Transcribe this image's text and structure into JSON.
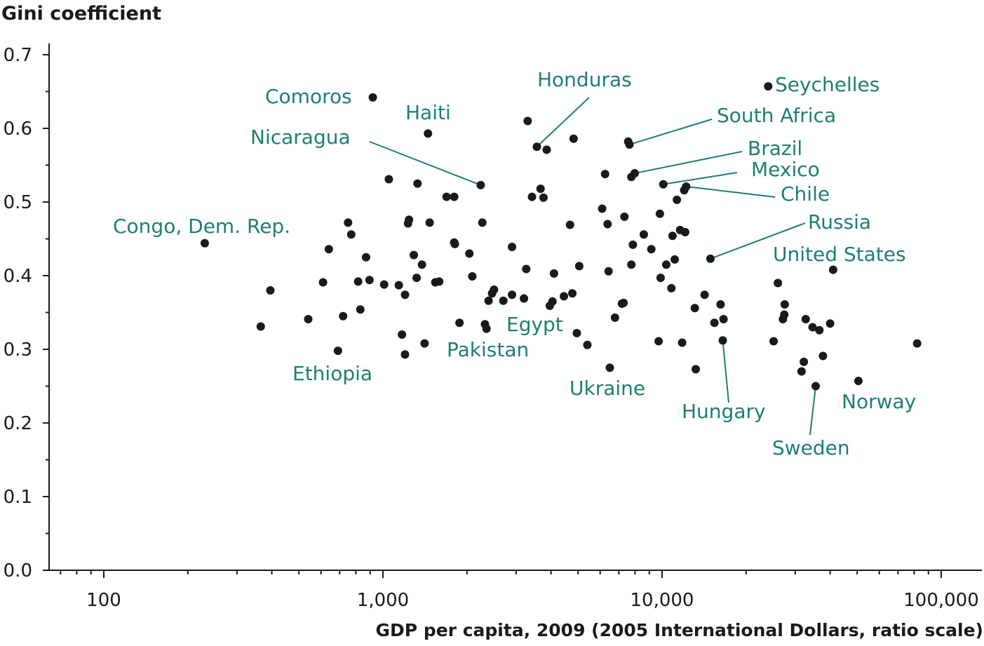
{
  "chart_data": {
    "type": "scatter",
    "ylabel": "Gini coefficient",
    "xlabel": "GDP per capita, 2009 (2005 International Dollars, ratio scale)",
    "x_scale": "log",
    "xlim": [
      63,
      100000
    ],
    "ylim": [
      0,
      0.7
    ],
    "x_ticks": [
      {
        "value": 100,
        "label": "100"
      },
      {
        "value": 1000,
        "label": "1,000"
      },
      {
        "value": 10000,
        "label": "10,000"
      },
      {
        "value": 100000,
        "label": "100,000"
      }
    ],
    "y_ticks": [
      {
        "value": 0.0,
        "label": "0.0"
      },
      {
        "value": 0.1,
        "label": "0.1"
      },
      {
        "value": 0.2,
        "label": "0.2"
      },
      {
        "value": 0.3,
        "label": "0.3"
      },
      {
        "value": 0.4,
        "label": "0.4"
      },
      {
        "value": 0.5,
        "label": "0.5"
      },
      {
        "value": 0.6,
        "label": "0.6"
      },
      {
        "value": 0.7,
        "label": "0.7"
      }
    ],
    "colors": {
      "points": "#1a1a1a",
      "labels": "#1e7f6e",
      "axis": "#1a1a1a"
    },
    "labeled_points": [
      {
        "name": "Comoros",
        "x": 920,
        "y": 0.642
      },
      {
        "name": "Haiti",
        "x": 1450,
        "y": 0.593
      },
      {
        "name": "Nicaragua",
        "x": 2240,
        "y": 0.523
      },
      {
        "name": "Honduras",
        "x": 3560,
        "y": 0.575
      },
      {
        "name": "Seychelles",
        "x": 24000,
        "y": 0.657
      },
      {
        "name": "South Africa",
        "x": 7640,
        "y": 0.578
      },
      {
        "name": "Brazil",
        "x": 7980,
        "y": 0.539
      },
      {
        "name": "Mexico",
        "x": 10100,
        "y": 0.524
      },
      {
        "name": "Chile",
        "x": 12200,
        "y": 0.521
      },
      {
        "name": "Russia",
        "x": 14900,
        "y": 0.423
      },
      {
        "name": "United States",
        "x": 41000,
        "y": 0.408
      },
      {
        "name": "Congo, Dem. Rep.",
        "x": 230,
        "y": 0.444
      },
      {
        "name": "Egypt",
        "x": 4950,
        "y": 0.322
      },
      {
        "name": "Pakistan",
        "x": 2350,
        "y": 0.328
      },
      {
        "name": "Ethiopia",
        "x": 690,
        "y": 0.298
      },
      {
        "name": "Ukraine",
        "x": 6500,
        "y": 0.275
      },
      {
        "name": "Hungary",
        "x": 16500,
        "y": 0.312
      },
      {
        "name": "Sweden",
        "x": 35500,
        "y": 0.25
      },
      {
        "name": "Norway",
        "x": 50500,
        "y": 0.257
      }
    ],
    "points": [
      {
        "x": 365,
        "y": 0.331
      },
      {
        "x": 395,
        "y": 0.38
      },
      {
        "x": 540,
        "y": 0.341
      },
      {
        "x": 610,
        "y": 0.391
      },
      {
        "x": 640,
        "y": 0.436
      },
      {
        "x": 720,
        "y": 0.345
      },
      {
        "x": 750,
        "y": 0.472
      },
      {
        "x": 770,
        "y": 0.456
      },
      {
        "x": 815,
        "y": 0.392
      },
      {
        "x": 830,
        "y": 0.354
      },
      {
        "x": 870,
        "y": 0.425
      },
      {
        "x": 895,
        "y": 0.394
      },
      {
        "x": 1010,
        "y": 0.388
      },
      {
        "x": 1050,
        "y": 0.531
      },
      {
        "x": 1140,
        "y": 0.387
      },
      {
        "x": 1170,
        "y": 0.32
      },
      {
        "x": 1200,
        "y": 0.374
      },
      {
        "x": 1200,
        "y": 0.293
      },
      {
        "x": 1230,
        "y": 0.471
      },
      {
        "x": 1240,
        "y": 0.476
      },
      {
        "x": 1290,
        "y": 0.428
      },
      {
        "x": 1320,
        "y": 0.397
      },
      {
        "x": 1330,
        "y": 0.525
      },
      {
        "x": 1380,
        "y": 0.415
      },
      {
        "x": 1410,
        "y": 0.308
      },
      {
        "x": 1470,
        "y": 0.472
      },
      {
        "x": 1540,
        "y": 0.391
      },
      {
        "x": 1590,
        "y": 0.392
      },
      {
        "x": 1690,
        "y": 0.507
      },
      {
        "x": 1800,
        "y": 0.507
      },
      {
        "x": 1800,
        "y": 0.445
      },
      {
        "x": 1810,
        "y": 0.443
      },
      {
        "x": 1880,
        "y": 0.336
      },
      {
        "x": 2040,
        "y": 0.43
      },
      {
        "x": 2090,
        "y": 0.399
      },
      {
        "x": 2270,
        "y": 0.472
      },
      {
        "x": 2320,
        "y": 0.334
      },
      {
        "x": 2390,
        "y": 0.366
      },
      {
        "x": 2460,
        "y": 0.376
      },
      {
        "x": 2500,
        "y": 0.381
      },
      {
        "x": 2700,
        "y": 0.366
      },
      {
        "x": 2900,
        "y": 0.439
      },
      {
        "x": 2900,
        "y": 0.374
      },
      {
        "x": 3200,
        "y": 0.369
      },
      {
        "x": 3260,
        "y": 0.409
      },
      {
        "x": 3300,
        "y": 0.61
      },
      {
        "x": 3420,
        "y": 0.507
      },
      {
        "x": 3670,
        "y": 0.518
      },
      {
        "x": 3760,
        "y": 0.506
      },
      {
        "x": 3860,
        "y": 0.571
      },
      {
        "x": 3960,
        "y": 0.359
      },
      {
        "x": 4050,
        "y": 0.365
      },
      {
        "x": 4100,
        "y": 0.403
      },
      {
        "x": 4450,
        "y": 0.372
      },
      {
        "x": 4680,
        "y": 0.469
      },
      {
        "x": 4770,
        "y": 0.376
      },
      {
        "x": 4820,
        "y": 0.586
      },
      {
        "x": 5050,
        "y": 0.413
      },
      {
        "x": 5400,
        "y": 0.306
      },
      {
        "x": 6100,
        "y": 0.491
      },
      {
        "x": 6250,
        "y": 0.538
      },
      {
        "x": 6380,
        "y": 0.47
      },
      {
        "x": 6430,
        "y": 0.406
      },
      {
        "x": 6780,
        "y": 0.343
      },
      {
        "x": 7180,
        "y": 0.362
      },
      {
        "x": 7280,
        "y": 0.363
      },
      {
        "x": 7330,
        "y": 0.48
      },
      {
        "x": 7560,
        "y": 0.582
      },
      {
        "x": 7760,
        "y": 0.534
      },
      {
        "x": 7760,
        "y": 0.415
      },
      {
        "x": 7860,
        "y": 0.442
      },
      {
        "x": 8600,
        "y": 0.456
      },
      {
        "x": 9150,
        "y": 0.436
      },
      {
        "x": 9720,
        "y": 0.311
      },
      {
        "x": 9820,
        "y": 0.484
      },
      {
        "x": 9880,
        "y": 0.397
      },
      {
        "x": 10350,
        "y": 0.415
      },
      {
        "x": 10800,
        "y": 0.383
      },
      {
        "x": 10900,
        "y": 0.454
      },
      {
        "x": 11100,
        "y": 0.422
      },
      {
        "x": 11300,
        "y": 0.503
      },
      {
        "x": 11600,
        "y": 0.462
      },
      {
        "x": 11800,
        "y": 0.309
      },
      {
        "x": 12000,
        "y": 0.516
      },
      {
        "x": 12100,
        "y": 0.459
      },
      {
        "x": 13100,
        "y": 0.356
      },
      {
        "x": 13200,
        "y": 0.273
      },
      {
        "x": 14200,
        "y": 0.374
      },
      {
        "x": 15400,
        "y": 0.336
      },
      {
        "x": 16200,
        "y": 0.361
      },
      {
        "x": 16600,
        "y": 0.341
      },
      {
        "x": 25100,
        "y": 0.311
      },
      {
        "x": 26000,
        "y": 0.39
      },
      {
        "x": 27100,
        "y": 0.341
      },
      {
        "x": 27400,
        "y": 0.347
      },
      {
        "x": 27500,
        "y": 0.361
      },
      {
        "x": 31600,
        "y": 0.27
      },
      {
        "x": 32200,
        "y": 0.283
      },
      {
        "x": 32700,
        "y": 0.341
      },
      {
        "x": 34600,
        "y": 0.33
      },
      {
        "x": 36600,
        "y": 0.326
      },
      {
        "x": 37700,
        "y": 0.291
      },
      {
        "x": 40000,
        "y": 0.335
      },
      {
        "x": 82000,
        "y": 0.308
      }
    ]
  }
}
